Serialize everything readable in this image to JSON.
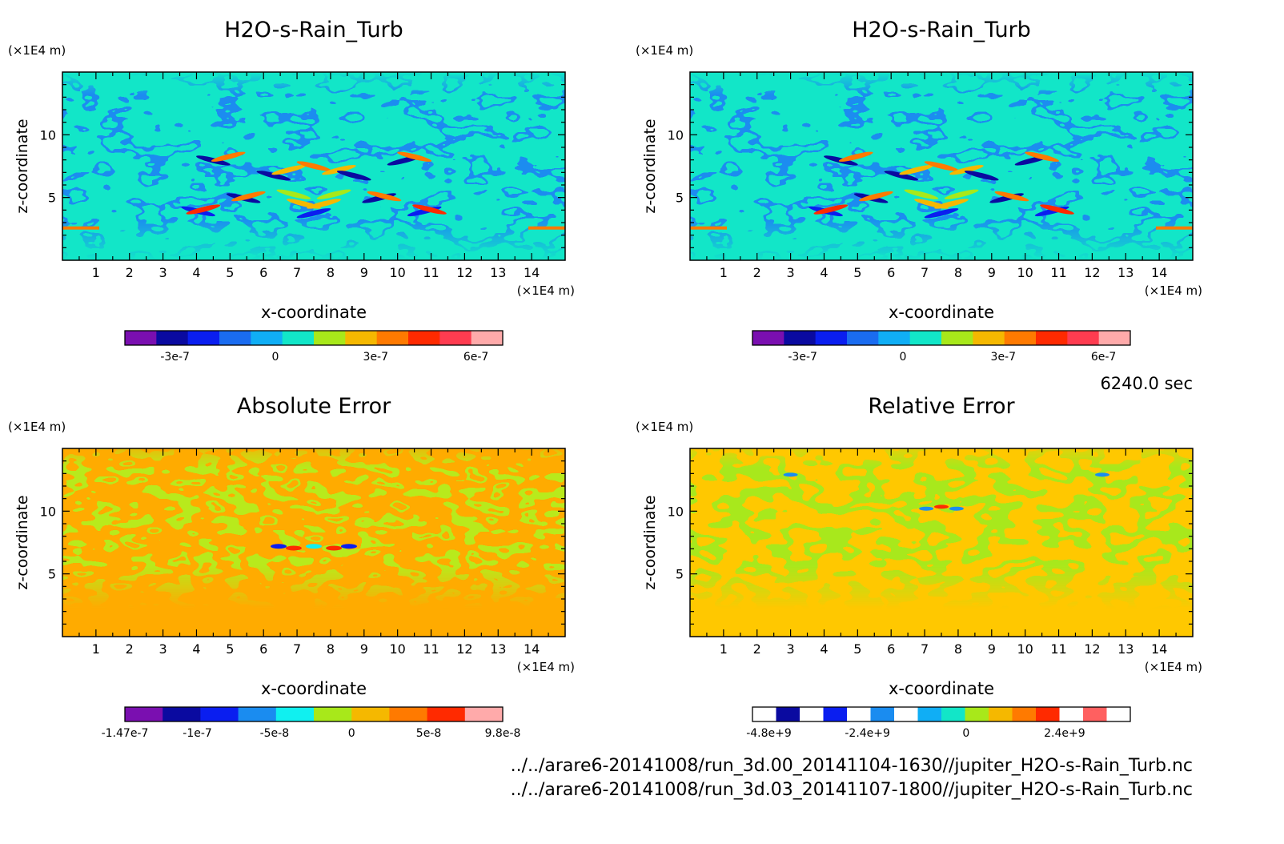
{
  "chart_data": [
    {
      "type": "heatmap",
      "title": "H2O-s-Rain_Turb",
      "xlabel": "x-coordinate",
      "ylabel": "z-coordinate",
      "x_unit": "(×1E4 m)",
      "y_unit": "(×1E4 m)",
      "xlim": [
        0,
        15
      ],
      "ylim": [
        0,
        15
      ],
      "x_ticks": [
        1,
        2,
        3,
        4,
        5,
        6,
        7,
        8,
        9,
        10,
        11,
        12,
        13,
        14
      ],
      "y_ticks": [
        5,
        10
      ],
      "colorbar": {
        "colors": [
          "#7a0fb0",
          "#0a0aa0",
          "#0a1ef0",
          "#1a6cf0",
          "#10aef5",
          "#12e6c8",
          "#a8e81a",
          "#f5b800",
          "#ff7a00",
          "#ff2a00",
          "#ff3c50",
          "#ffaaaa"
        ],
        "tick_labels": [
          "-3e-7",
          "0",
          "3e-7",
          "6e-7"
        ],
        "tick_values": [
          -3e-07,
          0,
          3e-07,
          6e-07
        ],
        "range": [
          -4.5e-07,
          6.8e-07
        ]
      },
      "background": "#12e6c8"
    },
    {
      "type": "heatmap",
      "title": "H2O-s-Rain_Turb",
      "xlabel": "x-coordinate",
      "ylabel": "z-coordinate",
      "x_unit": "(×1E4 m)",
      "y_unit": "(×1E4 m)",
      "xlim": [
        0,
        15
      ],
      "ylim": [
        0,
        15
      ],
      "x_ticks": [
        1,
        2,
        3,
        4,
        5,
        6,
        7,
        8,
        9,
        10,
        11,
        12,
        13,
        14
      ],
      "y_ticks": [
        5,
        10
      ],
      "colorbar": {
        "colors": [
          "#7a0fb0",
          "#0a0aa0",
          "#0a1ef0",
          "#1a6cf0",
          "#10aef5",
          "#12e6c8",
          "#a8e81a",
          "#f5b800",
          "#ff7a00",
          "#ff2a00",
          "#ff3c50",
          "#ffaaaa"
        ],
        "tick_labels": [
          "-3e-7",
          "0",
          "3e-7",
          "6e-7"
        ],
        "tick_values": [
          -3e-07,
          0,
          3e-07,
          6e-07
        ],
        "range": [
          -4.5e-07,
          6.8e-07
        ]
      },
      "background": "#12e6c8"
    },
    {
      "type": "heatmap",
      "title": "Absolute Error",
      "xlabel": "x-coordinate",
      "ylabel": "z-coordinate",
      "x_unit": "(×1E4 m)",
      "y_unit": "(×1E4 m)",
      "xlim": [
        0,
        15
      ],
      "ylim": [
        0,
        15
      ],
      "x_ticks": [
        1,
        2,
        3,
        4,
        5,
        6,
        7,
        8,
        9,
        10,
        11,
        12,
        13,
        14
      ],
      "y_ticks": [
        5,
        10
      ],
      "colorbar": {
        "colors": [
          "#7a0fb0",
          "#0a0aa0",
          "#0a1ef0",
          "#1a8cf0",
          "#10f0f0",
          "#a8e81a",
          "#f5b800",
          "#ff7a00",
          "#ff2a00",
          "#ffaaaa"
        ],
        "tick_labels": [
          "-1.47e-7",
          "-1e-7",
          "-5e-8",
          "0",
          "5e-8",
          "9.8e-8"
        ],
        "tick_values": [
          -1.47e-07,
          -1e-07,
          -5e-08,
          0,
          5e-08,
          9.8e-08
        ],
        "range": [
          -1.47e-07,
          9.8e-08
        ]
      },
      "background": "#ffab00"
    },
    {
      "type": "heatmap",
      "title": "Relative Error",
      "xlabel": "x-coordinate",
      "ylabel": "z-coordinate",
      "x_unit": "(×1E4 m)",
      "y_unit": "(×1E4 m)",
      "xlim": [
        0,
        15
      ],
      "ylim": [
        0,
        15
      ],
      "x_ticks": [
        1,
        2,
        3,
        4,
        5,
        6,
        7,
        8,
        9,
        10,
        11,
        12,
        13,
        14
      ],
      "y_ticks": [
        5,
        10
      ],
      "colorbar": {
        "colors": [
          "#ffffff",
          "#0a0aa0",
          "#ffffff",
          "#0a1ef0",
          "#ffffff",
          "#1a8cf0",
          "#ffffff",
          "#10aef5",
          "#12e6c8",
          "#a8e81a",
          "#f5b800",
          "#ff7a00",
          "#ff2a00",
          "#ffffff",
          "#ff6060",
          "#ffffff"
        ],
        "tick_labels": [
          "-4.8e+9",
          "-2.4e+9",
          "0",
          "2.4e+9"
        ],
        "tick_values": [
          -4800000000.0,
          -2400000000.0,
          0,
          2400000000.0
        ],
        "range": [
          -5200000000.0,
          4000000000.0
        ]
      },
      "background": "#ffc800"
    }
  ],
  "time_label": "6240.0 sec",
  "files": [
    "../../arare6-20141008/run_3d.00_20141104-1630//jupiter_H2O-s-Rain_Turb.nc",
    "../../arare6-20141008/run_3d.03_20141107-1800//jupiter_H2O-s-Rain_Turb.nc"
  ]
}
